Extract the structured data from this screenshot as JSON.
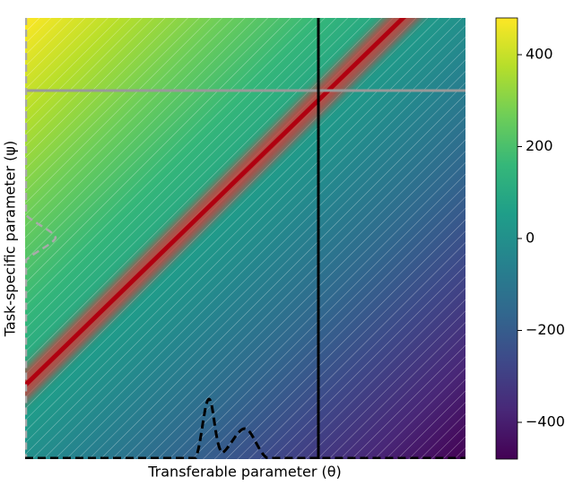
{
  "chart_data": {
    "type": "heatmap",
    "xlabel": "Transferable parameter (θ)",
    "ylabel": "Task-specific parameter (ψ)",
    "colormap": "viridis",
    "zlim": [
      -480,
      480
    ],
    "zticks": [
      {
        "value": -400,
        "label": "−400"
      },
      {
        "value": -200,
        "label": "−200"
      },
      0,
      200,
      400
    ]
  }
}
